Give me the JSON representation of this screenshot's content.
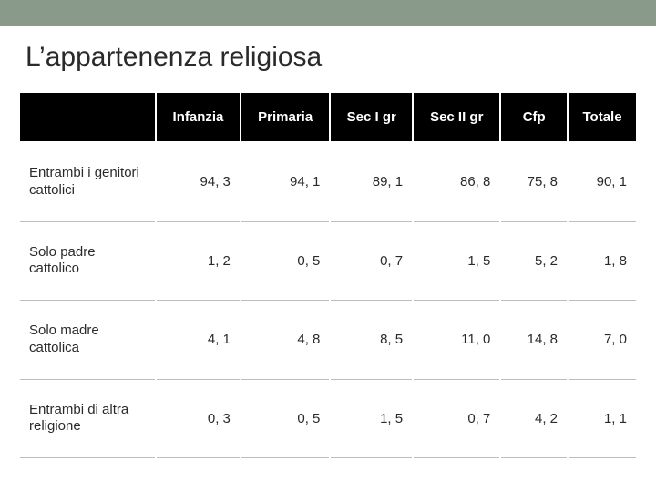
{
  "title": "L’appartenenza religiosa",
  "table": {
    "type": "table",
    "header_bg": "#000000",
    "header_fg": "#ffffff",
    "cell_bg": "#ffffff",
    "cell_fg": "#2a2a2a",
    "border_color": "#bdbdbd",
    "gap_color": "#ffffff",
    "header_fontsize": 15,
    "cell_fontsize": 15,
    "label_align": "left",
    "value_align": "right",
    "column_widths_pct": [
      22,
      13,
      13,
      13,
      13,
      13,
      13
    ],
    "columns": [
      "Infanzia",
      "Primaria",
      "Sec I gr",
      "Sec II gr",
      "Cfp",
      "Totale"
    ],
    "rows": [
      {
        "label": "Entrambi i genitori cattolici",
        "values": [
          "94, 3",
          "94, 1",
          "89, 1",
          "86, 8",
          "75, 8",
          "90, 1"
        ]
      },
      {
        "label": "Solo padre cattolico",
        "values": [
          "1, 2",
          "0, 5",
          "0, 7",
          "1, 5",
          "5, 2",
          "1, 8"
        ]
      },
      {
        "label": "Solo madre cattolica",
        "values": [
          "4, 1",
          "4, 8",
          "8, 5",
          "11, 0",
          "14, 8",
          "7, 0"
        ]
      },
      {
        "label": "Entrambi di altra religione",
        "values": [
          "0, 3",
          "0, 5",
          "1, 5",
          "0, 7",
          "4, 2",
          "1, 1"
        ]
      }
    ]
  },
  "colors": {
    "slide_bg": "#ffffff",
    "accent_bar": "#8a9a8a",
    "title_color": "#2a2a2a"
  }
}
